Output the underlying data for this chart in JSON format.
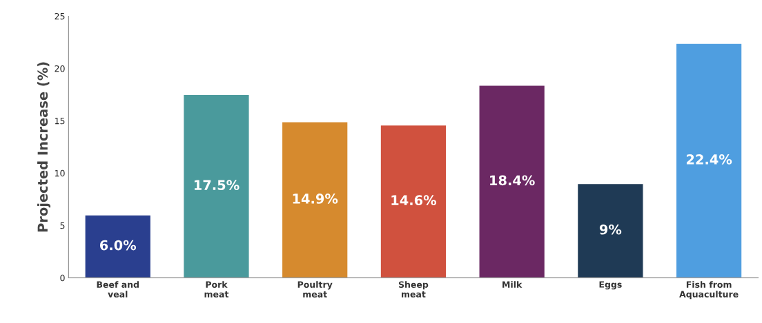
{
  "chart_data": {
    "type": "bar",
    "ylabel": "Projected Increase (%)",
    "categories": [
      "Beef and\nveal",
      "Pork\nmeat",
      "Poultry\nmeat",
      "Sheep\nmeat",
      "Milk",
      "Eggs",
      "Fish from\nAquaculture"
    ],
    "values": [
      6.0,
      17.5,
      14.9,
      14.6,
      18.4,
      9,
      22.4
    ],
    "colors": [
      "#2a3f8f",
      "#4a9a9c",
      "#d68a2e",
      "#d0513e",
      "#6b2863",
      "#1f3a55",
      "#4f9ee0"
    ],
    "value_labels": [
      "6.0%",
      "17.5%",
      "14.9%",
      "14.6%",
      "18.4%",
      "9%",
      "22.4%"
    ],
    "ylim": [
      0,
      25
    ],
    "yticks": [
      0,
      5,
      10,
      15,
      20,
      25
    ],
    "grid": false,
    "legend": false
  }
}
